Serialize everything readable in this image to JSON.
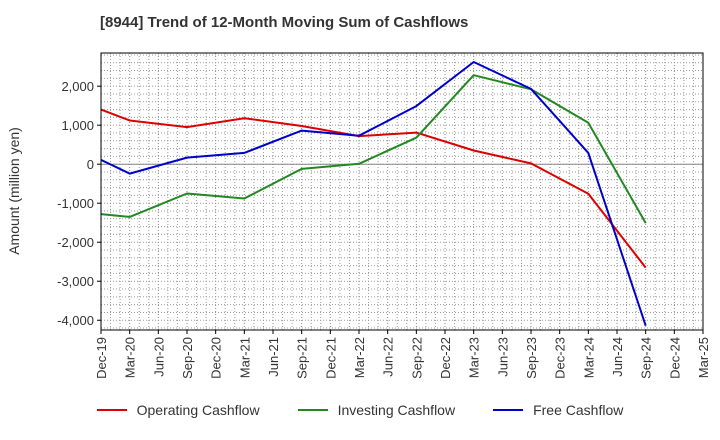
{
  "title": "[8944]  Trend of 12-Month Moving Sum of Cashflows",
  "chart_data": {
    "type": "line",
    "title": "[8944]  Trend of 12-Month Moving Sum of Cashflows",
    "xlabel": "",
    "ylabel": "Amount (million yen)",
    "ylim": [
      -4250,
      2850
    ],
    "grid": true,
    "legend_position": "bottom",
    "x": [
      "Dec-19",
      "Mar-20",
      "Jun-20",
      "Sep-20",
      "Dec-20",
      "Mar-21",
      "Jun-21",
      "Sep-21",
      "Dec-21",
      "Mar-22",
      "Jun-22",
      "Sep-22",
      "Dec-22",
      "Mar-23",
      "Jun-23",
      "Sep-23",
      "Dec-23",
      "Mar-24",
      "Jun-24",
      "Sep-24",
      "Dec-24",
      "Mar-25"
    ],
    "yticks": [
      2000,
      1000,
      0,
      -1000,
      -2000,
      -3000,
      -4000
    ],
    "ytick_labels": [
      "2,000",
      "1,000",
      "0",
      "-1,000",
      "-2,000",
      "-3,000",
      "-4,000"
    ],
    "series": [
      {
        "name": "Operating Cashflow",
        "color": "#dd0000",
        "values": [
          1400,
          1120,
          null,
          950,
          null,
          1180,
          null,
          980,
          null,
          720,
          null,
          810,
          null,
          350,
          null,
          20,
          null,
          -760,
          null,
          -2650,
          null,
          null
        ]
      },
      {
        "name": "Investing Cashflow",
        "color": "#228822",
        "values": [
          -1280,
          -1350,
          null,
          -750,
          null,
          -880,
          null,
          -120,
          null,
          10,
          null,
          680,
          null,
          2280,
          null,
          1920,
          null,
          1060,
          null,
          -1510,
          null,
          null
        ]
      },
      {
        "name": "Free Cashflow",
        "color": "#0000cc",
        "values": [
          110,
          -240,
          null,
          170,
          null,
          290,
          null,
          860,
          null,
          730,
          null,
          1490,
          null,
          2620,
          null,
          1930,
          null,
          290,
          null,
          -4140,
          null,
          null
        ]
      }
    ]
  }
}
